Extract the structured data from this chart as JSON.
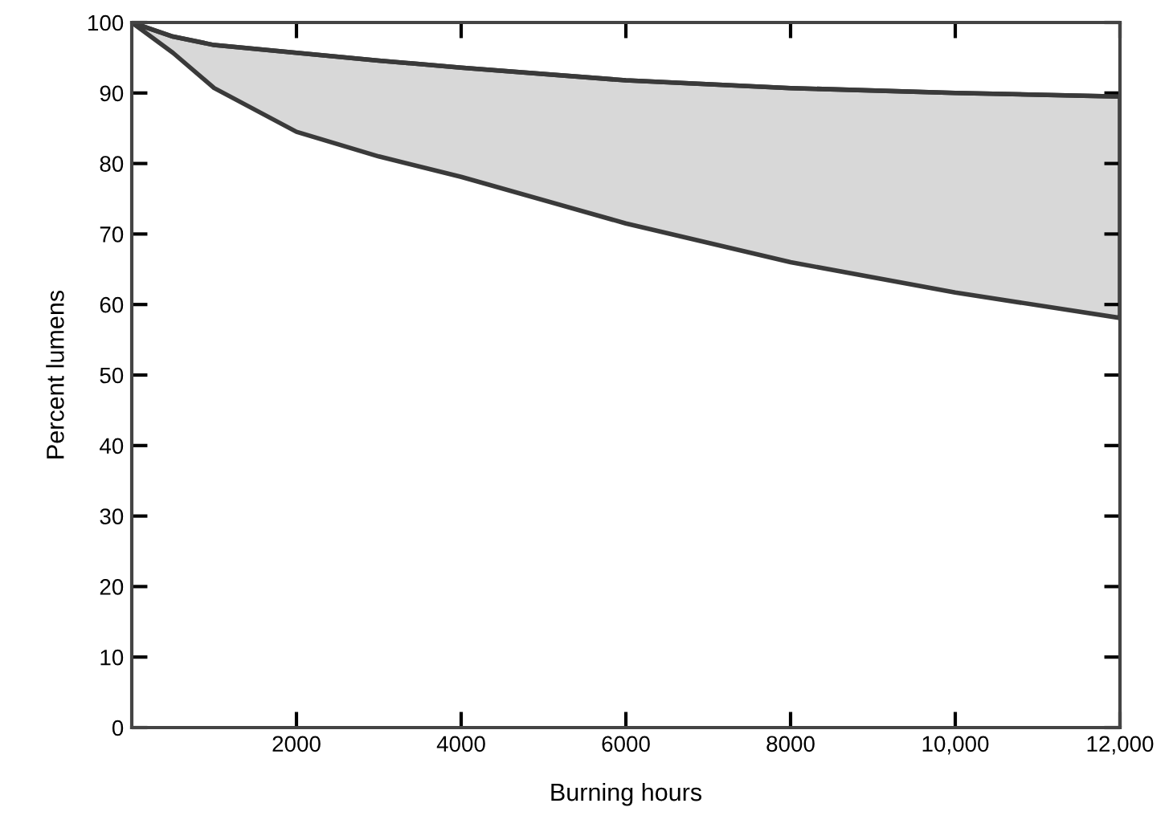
{
  "chart_data": {
    "type": "line",
    "xlabel": "Burning hours",
    "ylabel": "Percent lumens",
    "x": [
      0,
      500,
      1000,
      2000,
      3000,
      4000,
      6000,
      8000,
      10000,
      12000
    ],
    "series": [
      {
        "color": "#3a3a3a",
        "values": [
          100,
          98,
          96.8,
          95.7,
          94.6,
          93.6,
          91.8,
          90.7,
          90.0,
          89.5
        ],
        "lower": [
          100,
          95.7,
          90.7,
          84.5,
          81,
          78.1,
          71.5,
          66.0,
          61.7,
          58.1
        ],
        "upper": [
          100,
          98,
          96.8,
          95.7,
          94.6,
          93.6,
          91.8,
          90.7,
          90.0,
          89.5
        ]
      }
    ],
    "xlim": [
      0,
      12000
    ],
    "ylim": [
      0,
      100
    ],
    "xticks": [
      2000,
      4000,
      6000,
      8000,
      {
        "value": 10000,
        "label": "10,000"
      },
      {
        "value": 12000,
        "label": "12,000"
      }
    ],
    "yticks": [
      0,
      10,
      20,
      30,
      40,
      50,
      60,
      70,
      80,
      90,
      100
    ],
    "grid": false,
    "legend": false
  }
}
